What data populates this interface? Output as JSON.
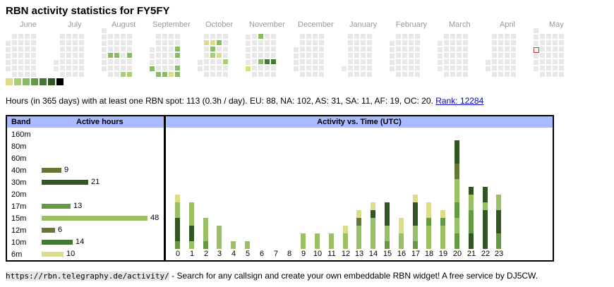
{
  "title": "RBN activity statistics for FY5FY",
  "months": [
    "June",
    "July",
    "August",
    "September",
    "October",
    "November",
    "December",
    "January",
    "February",
    "March",
    "April",
    "May"
  ],
  "heatmap_palette": [
    "#e8e8e8",
    "#dddd88",
    "#aacc77",
    "#88bb66",
    "#669944",
    "#447733",
    "#335522"
  ],
  "heatmap_active_days": [
    {
      "week": 15,
      "day": 3,
      "level": 3
    },
    {
      "week": 16,
      "day": 3,
      "level": 3
    },
    {
      "week": 17,
      "day": 6,
      "level": 2
    },
    {
      "week": 18,
      "day": 3,
      "level": 3
    },
    {
      "week": 18,
      "day": 6,
      "level": 2
    },
    {
      "week": 19,
      "day": 3,
      "level": 3
    },
    {
      "week": 21,
      "day": 6,
      "level": 3
    },
    {
      "week": 22,
      "day": 6,
      "level": 3
    },
    {
      "week": 23,
      "day": 6,
      "level": 3
    },
    {
      "week": 24,
      "day": 6,
      "level": 1
    },
    {
      "week": 25,
      "day": 2,
      "level": 3
    },
    {
      "week": 25,
      "day": 3,
      "level": 3
    },
    {
      "week": 25,
      "day": 5,
      "level": 3
    },
    {
      "week": 25,
      "day": 6,
      "level": 3
    },
    {
      "week": 26,
      "day": 1,
      "level": 4
    },
    {
      "week": 26,
      "day": 2,
      "level": 1
    },
    {
      "week": 26,
      "day": 3,
      "level": 3
    },
    {
      "week": 26,
      "day": 4,
      "level": 5
    },
    {
      "week": 26,
      "day": 5,
      "level": 2
    },
    {
      "week": 26,
      "day": 6,
      "level": 2
    },
    {
      "week": 27,
      "day": 0,
      "level": 3
    },
    {
      "week": 27,
      "day": 3,
      "level": 4
    },
    {
      "week": 27,
      "day": 5,
      "level": 2
    },
    {
      "week": 28,
      "day": 4,
      "level": 1
    },
    {
      "week": 29,
      "day": 1,
      "level": 1
    },
    {
      "week": 30,
      "day": 1,
      "level": 1
    },
    {
      "week": 30,
      "day": 2,
      "level": 3
    },
    {
      "week": 30,
      "day": 3,
      "level": 2
    },
    {
      "week": 31,
      "day": 1,
      "level": 3
    },
    {
      "week": 31,
      "day": 3,
      "level": 1
    },
    {
      "week": 32,
      "day": 4,
      "level": 2
    },
    {
      "week": 35,
      "day": 6,
      "level": 1
    },
    {
      "week": 37,
      "day": 0,
      "level": 3
    },
    {
      "week": 37,
      "day": 4,
      "level": 3
    },
    {
      "week": 38,
      "day": 4,
      "level": 5
    },
    {
      "week": 39,
      "day": 4,
      "level": 5
    },
    {
      "week": 87,
      "day": 1,
      "level": 2
    },
    {
      "week": 87,
      "day": 2,
      "level": 3
    },
    {
      "week": 88,
      "day": 3,
      "level": 3
    },
    {
      "week": 88,
      "day": 4,
      "level": 2
    }
  ],
  "today_marker_color": "#cc3333",
  "legend_colors": [
    "#dddd88",
    "#aacc77",
    "#88bb66",
    "#669944",
    "#447733",
    "#335522",
    "#000000"
  ],
  "summary": {
    "text": "Hours (in 365 days) with at least one RBN spot: 113 (0.3h / day). EU: 88, NA: 102, AS: 31, SA: 11, AF: 19, OC: 20.",
    "rank_link": "Rank: 12284"
  },
  "bands_table": {
    "col_band": "Band",
    "col_hours": "Active hours",
    "rows": [
      {
        "band": "160m",
        "hours": "",
        "value": 0,
        "color": ""
      },
      {
        "band": "80m",
        "hours": "",
        "value": 0,
        "color": ""
      },
      {
        "band": "60m",
        "hours": "",
        "value": 0,
        "color": ""
      },
      {
        "band": "40m",
        "hours": "9",
        "value": 9,
        "color": "#667733"
      },
      {
        "band": "30m",
        "hours": "21",
        "value": 21,
        "color": "#335522"
      },
      {
        "band": "20m",
        "hours": "",
        "value": 0,
        "color": ""
      },
      {
        "band": "17m",
        "hours": "13",
        "value": 13,
        "color": "#669944"
      },
      {
        "band": "15m",
        "hours": "48",
        "value": 48,
        "color": "#99c066"
      },
      {
        "band": "12m",
        "hours": "6",
        "value": 6,
        "color": "#667733"
      },
      {
        "band": "10m",
        "hours": "14",
        "value": 14,
        "color": "#447733"
      },
      {
        "band": "6m",
        "hours": "10",
        "value": 10,
        "color": "#dddd88"
      }
    ]
  },
  "chart_data": {
    "type": "bar",
    "title": "Activity vs. Time (UTC)",
    "categories": [
      "0",
      "1",
      "2",
      "3",
      "4",
      "5",
      "6",
      "7",
      "8",
      "9",
      "10",
      "11",
      "12",
      "13",
      "14",
      "15",
      "16",
      "17",
      "18",
      "19",
      "20",
      "21",
      "22",
      "23"
    ],
    "stacks": [
      [
        [
          "#dddd88",
          1
        ],
        [
          "#99c066",
          2
        ],
        [
          "#335522",
          3
        ],
        [
          "#669944",
          1
        ]
      ],
      [
        [
          "#99c066",
          3
        ],
        [
          "#335522",
          2
        ],
        [
          "#99c066",
          1
        ]
      ],
      [
        [
          "#99c066",
          3
        ],
        [
          "#669944",
          1
        ]
      ],
      [
        [
          "#99c066",
          3
        ]
      ],
      [
        [
          "#99c066",
          1
        ]
      ],
      [
        [
          "#99c066",
          1
        ]
      ],
      [],
      [],
      [],
      [
        [
          "#99c066",
          2
        ]
      ],
      [
        [
          "#99c066",
          2
        ]
      ],
      [
        [
          "#99c066",
          2
        ]
      ],
      [
        [
          "#dddd88",
          1
        ],
        [
          "#99c066",
          2
        ]
      ],
      [
        [
          "#dddd88",
          1
        ],
        [
          "#667733",
          1
        ],
        [
          "#99c066",
          3
        ]
      ],
      [
        [
          "#dddd88",
          1
        ],
        [
          "#335522",
          1
        ],
        [
          "#99c066",
          4
        ]
      ],
      [
        [
          "#335522",
          3
        ],
        [
          "#99c066",
          2
        ],
        [
          "#669944",
          1
        ]
      ],
      [
        [
          "#dddd88",
          2
        ],
        [
          "#99c066",
          2
        ]
      ],
      [
        [
          "#dddd88",
          1
        ],
        [
          "#335522",
          3
        ],
        [
          "#99c066",
          2
        ],
        [
          "#669944",
          1
        ]
      ],
      [
        [
          "#dddd88",
          2
        ],
        [
          "#669944",
          1
        ],
        [
          "#99c066",
          3
        ]
      ],
      [
        [
          "#dddd88",
          1
        ],
        [
          "#669944",
          1
        ],
        [
          "#99c066",
          3
        ]
      ],
      [
        [
          "#335522",
          3
        ],
        [
          "#667733",
          2
        ],
        [
          "#99c066",
          3
        ],
        [
          "#669944",
          2
        ],
        [
          "#99c066",
          2
        ],
        [
          "#669944",
          2
        ]
      ],
      [
        [
          "#335522",
          1
        ],
        [
          "#99c066",
          2
        ],
        [
          "#669944",
          3
        ],
        [
          "#335522",
          2
        ]
      ],
      [
        [
          "#335522",
          2
        ],
        [
          "#99c066",
          1
        ],
        [
          "#335522",
          5
        ]
      ],
      [
        [
          "#99c066",
          2
        ],
        [
          "#335522",
          3
        ],
        [
          "#669944",
          2
        ]
      ]
    ]
  },
  "footer": {
    "url": "https://rbn.telegraphy.de/activity/",
    "text": " - Search for any callsign and create your own embeddable RBN widget! A free service by DJ5CW."
  }
}
